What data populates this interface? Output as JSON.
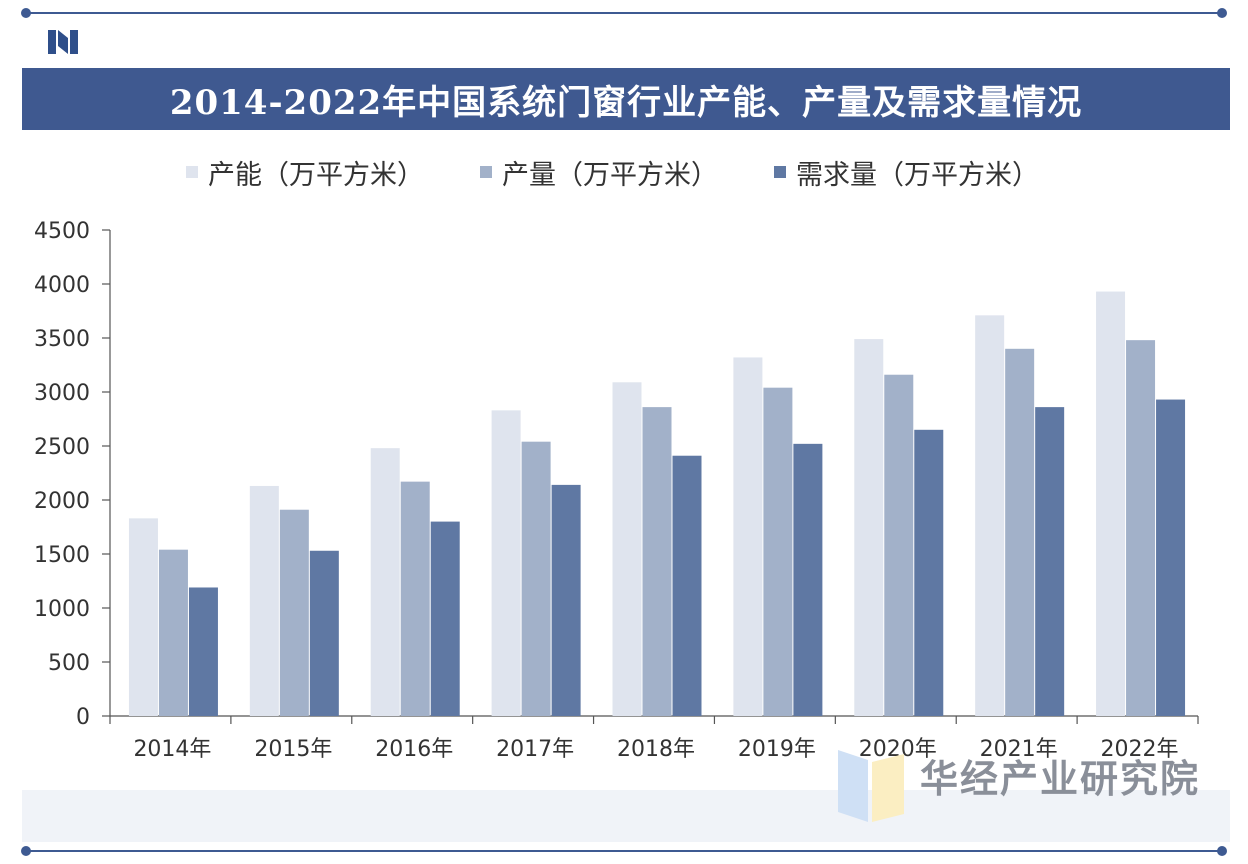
{
  "title": "2014-2022年中国系统门窗行业产能、产量及需求量情况",
  "brand": "华经产业研究院",
  "colors": {
    "title_bg": "#3f5990",
    "capacity": "#dfe4ee",
    "output": "#a2b1c9",
    "demand": "#5f78a3",
    "axis": "#555555"
  },
  "chart_data": {
    "type": "bar",
    "title": "2014-2022年中国系统门窗行业产能、产量及需求量情况",
    "categories": [
      "2014年",
      "2015年",
      "2016年",
      "2017年",
      "2018年",
      "2019年",
      "2020年",
      "2021年",
      "2022年"
    ],
    "series": [
      {
        "name": "产能（万平方米）",
        "values": [
          1830,
          2130,
          2480,
          2830,
          3090,
          3320,
          3490,
          3710,
          3930
        ]
      },
      {
        "name": "产量（万平方米）",
        "values": [
          1540,
          1910,
          2170,
          2540,
          2860,
          3040,
          3160,
          3400,
          3480
        ]
      },
      {
        "name": "需求量（万平方米）",
        "values": [
          1190,
          1530,
          1800,
          2140,
          2410,
          2520,
          2650,
          2860,
          2930
        ]
      }
    ],
    "yticks": [
      "0",
      "500",
      "1000",
      "1500",
      "2000",
      "2500",
      "3000",
      "3500",
      "4000",
      "4500"
    ],
    "ylim": [
      0,
      4500
    ],
    "legend_position": "top",
    "grid": false
  }
}
